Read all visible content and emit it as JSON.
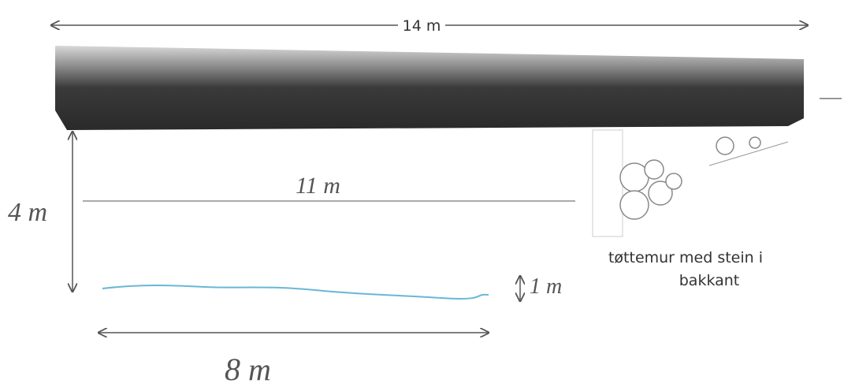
{
  "dimensions": {
    "length": "14 m",
    "inner_length": "11 m",
    "height": "4 m",
    "water_depth": "1 m",
    "water_length": "8 m"
  },
  "caption": {
    "lines": [
      "tøttemur med stein i",
      "bakkant"
    ]
  }
}
